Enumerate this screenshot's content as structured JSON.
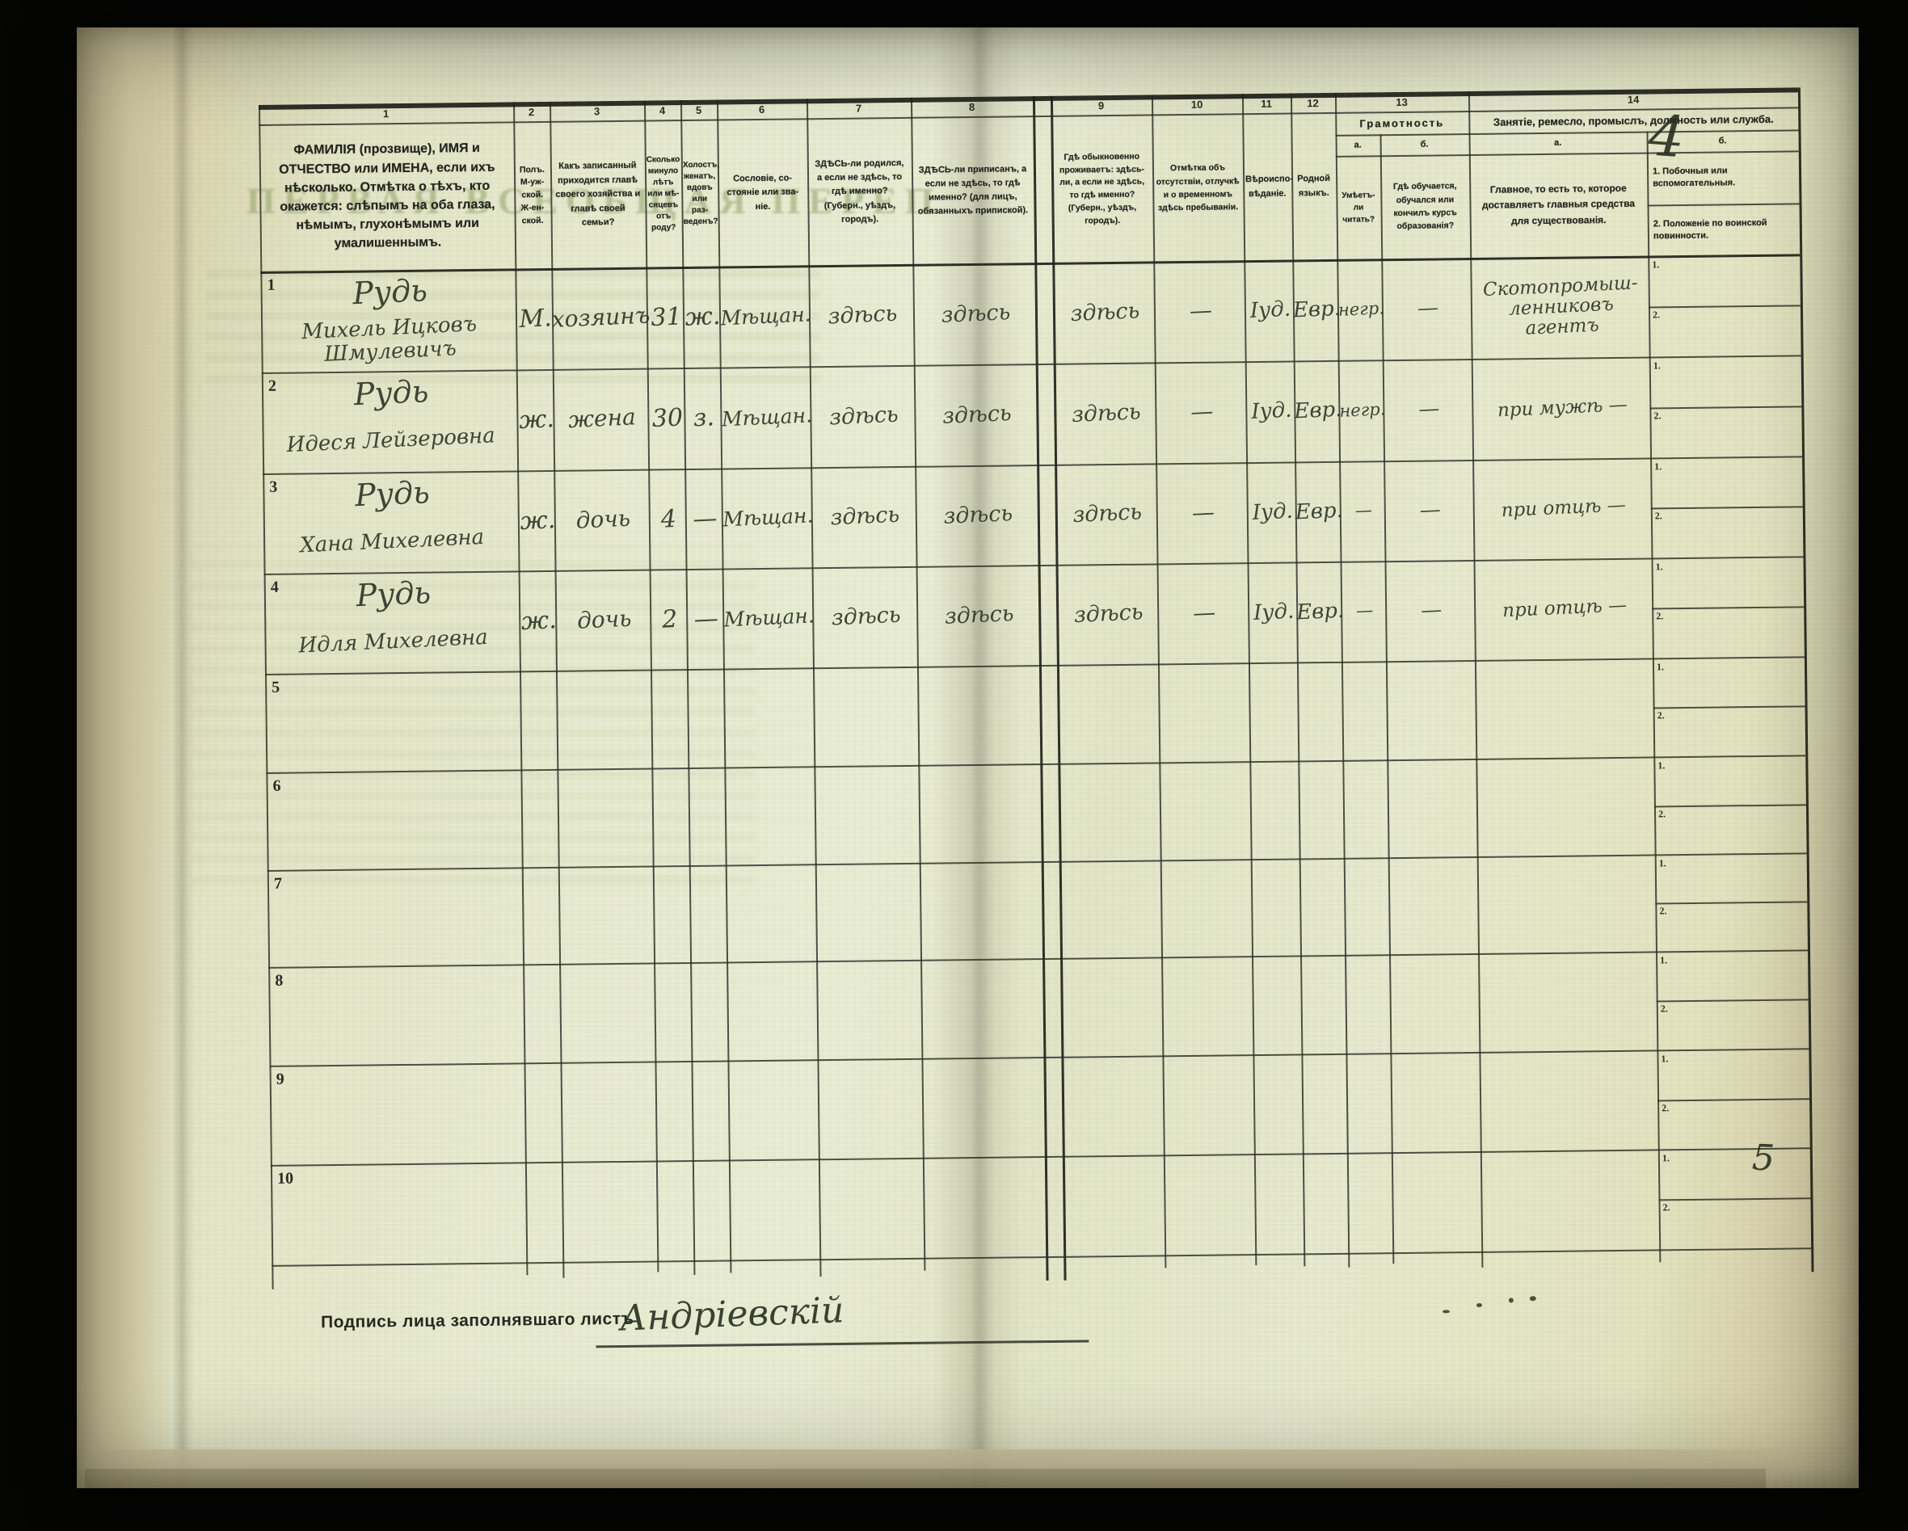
{
  "document": {
    "page_number_top_right": "4",
    "page_number_margin": "5",
    "ghost_text": "ПЕРВАЯ ВСЕОБЩАЯ ПЕРЕП"
  },
  "table_header": {
    "numbers": [
      "1",
      "2",
      "3",
      "4",
      "5",
      "6",
      "7",
      "8",
      "9",
      "10",
      "11",
      "12",
      "13",
      "14"
    ],
    "col1": "ФАМИЛІЯ (прозвище), ИМЯ и ОТЧЕСТВО или ИМЕНА, если ихъ нѣсколько. Отмѣтка о тѣхъ, кто окажется: слѣпымъ на оба глаза, нѣмымъ, глухонѣмымъ или умалишеннымъ.",
    "col2": "Полъ. М-уж-ской. Ж-ен-ской.",
    "col3": "Какъ записанный приходится главѣ своего хозяйства и главѣ своей семьи?",
    "col4": "Сколько минуло лѣтъ или мѣ­сяцевъ отъ роду?",
    "col5": "Холостъ, женатъ, вдовъ или раз­веденъ?",
    "col6": "Сословіе, со­стояніе или зва­ніе.",
    "col7": "ЗДѢСЬ-ли родился, а если не здѣсь, то гдѣ именно? (Губерн., уѣздъ, городъ).",
    "col8": "ЗДѢСЬ-ли приписанъ, а если не здѣсь, то гдѣ именно? (для лицъ, обязанныхъ припиской).",
    "col9": "Гдѣ обыкновенно проживаетъ: здѣсь-ли, а если не здѣсь, то гдѣ именно? (Губерн., уѣздъ, городъ).",
    "col10": "Отмѣтка объ отсутствіи, отлучкѣ и о временномъ здѣсь пребыва­ніи.",
    "col11": "Вѣроиспо­вѣданіе.",
    "col12": "Родной языкъ.",
    "col13_group": "Грамотность",
    "col13a_label": "а.",
    "col13b_label": "б.",
    "col13a": "Умѣетъ-ли читать?",
    "col13b": "Гдѣ обучается, обучался или кончилъ курсъ образованія?",
    "col14_group": "Занятіе, ремесло, промыслъ, должность или служба.",
    "col14a_label": "а.",
    "col14b_label": "б.",
    "col14a": "Главное, то есть то, которое доставляетъ главныя средства для существованія.",
    "col14b_item1": "1.  Побочныя или вспомогательныя.",
    "col14b_item2": "2.  Положеніе по воинской повинности.",
    "subcell_num1": "1.",
    "subcell_num2": "2."
  },
  "rows": [
    {
      "num": "1",
      "surname": "Рудь",
      "name": "Михель Ицковъ Шмуле­вичъ",
      "sex": "М.",
      "relation": "хозяинъ",
      "age": "31",
      "marital": "ж.",
      "estate": "Мѣщан.",
      "born": "здѣсь",
      "registered": "здѣсь",
      "resides": "здѣсь",
      "absence": "—",
      "religion": "Іуд.",
      "language": "Евр.",
      "literacy": "негр.",
      "education": "—",
      "occupation": "Скотопромыш­ленниковъ агентъ"
    },
    {
      "num": "2",
      "surname": "Рудь",
      "name": "Идеся Лейзеровна",
      "sex": "ж.",
      "relation": "жена",
      "age": "30",
      "marital": "з.",
      "estate": "Мѣщан.",
      "born": "здѣсь",
      "registered": "здѣсь",
      "resides": "здѣсь",
      "absence": "—",
      "religion": "Іуд.",
      "language": "Евр.",
      "literacy": "негр.",
      "education": "—",
      "occupation": "при мужѣ —"
    },
    {
      "num": "3",
      "surname": "Рудь",
      "name": "Хана Михелевна",
      "sex": "ж.",
      "relation": "дочь",
      "age": "4",
      "marital": "—",
      "estate": "Мѣщан.",
      "born": "здѣсь",
      "registered": "здѣсь",
      "resides": "здѣсь",
      "absence": "—",
      "religion": "Іуд.",
      "language": "Евр.",
      "literacy": "—",
      "education": "—",
      "occupation": "при отцѣ —"
    },
    {
      "num": "4",
      "surname": "Рудь",
      "name": "Идля Михелевна",
      "sex": "ж.",
      "relation": "дочь",
      "age": "2",
      "marital": "—",
      "estate": "Мѣщан.",
      "born": "здѣсь",
      "registered": "здѣсь",
      "resides": "здѣсь",
      "absence": "—",
      "religion": "Іуд.",
      "language": "Евр.",
      "literacy": "—",
      "education": "—",
      "occupation": "при отцѣ —"
    },
    {
      "num": "5"
    },
    {
      "num": "6"
    },
    {
      "num": "7"
    },
    {
      "num": "8"
    },
    {
      "num": "9"
    },
    {
      "num": "10"
    }
  ],
  "footer": {
    "signature_label": "Подпись лица заполнявшаго листъ",
    "signature": "Андріевскій"
  }
}
